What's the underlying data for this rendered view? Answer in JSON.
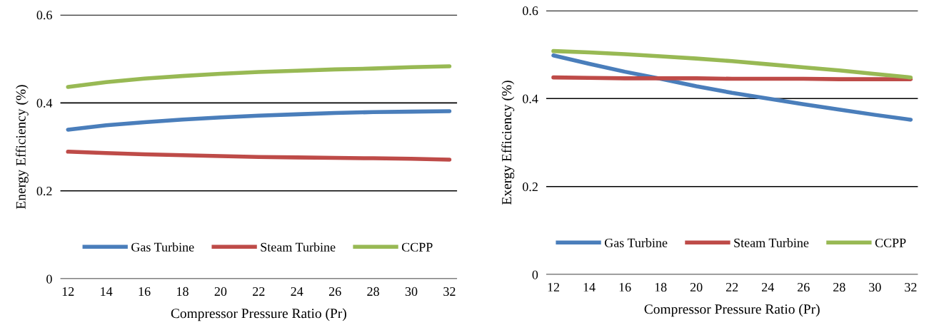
{
  "chart_data": [
    {
      "type": "line",
      "xlabel": "Compressor Pressure Ratio (Pr)",
      "ylabel": "Energy Efficiency (%)",
      "x": [
        12,
        14,
        16,
        18,
        20,
        22,
        24,
        26,
        28,
        30,
        32
      ],
      "xlim": [
        11.6,
        32.4
      ],
      "xticks": [
        12,
        14,
        16,
        18,
        20,
        22,
        24,
        26,
        28,
        30,
        32
      ],
      "ylim": [
        0,
        0.6
      ],
      "yticks": [
        0,
        0.2,
        0.4,
        0.6
      ],
      "grid": "y",
      "legend": "bottom",
      "marker": "none",
      "line_style": "solid",
      "series": [
        {
          "name": "Gas Turbine",
          "color": "#4a7ebb",
          "values": [
            0.339,
            0.349,
            0.356,
            0.362,
            0.367,
            0.371,
            0.374,
            0.377,
            0.379,
            0.38,
            0.381
          ]
        },
        {
          "name": "Steam Turbine",
          "color": "#be4b48",
          "values": [
            0.289,
            0.286,
            0.283,
            0.281,
            0.279,
            0.277,
            0.276,
            0.275,
            0.274,
            0.273,
            0.271
          ]
        },
        {
          "name": "CCPP",
          "color": "#98b954",
          "values": [
            0.436,
            0.447,
            0.455,
            0.461,
            0.466,
            0.47,
            0.473,
            0.476,
            0.478,
            0.481,
            0.483
          ]
        }
      ]
    },
    {
      "type": "line",
      "xlabel": "Compressor Pressure Ratio (Pr)",
      "ylabel": "Exergy Efficiency (%)",
      "x": [
        12,
        14,
        16,
        18,
        20,
        22,
        24,
        26,
        28,
        30,
        32
      ],
      "xlim": [
        11.6,
        32.4
      ],
      "xticks": [
        12,
        14,
        16,
        18,
        20,
        22,
        24,
        26,
        28,
        30,
        32
      ],
      "ylim": [
        0,
        0.6
      ],
      "yticks": [
        0,
        0.2,
        0.4,
        0.6
      ],
      "grid": "y",
      "legend": "bottom",
      "marker": "none",
      "line_style": "solid",
      "series": [
        {
          "name": "Gas Turbine",
          "color": "#4a7ebb",
          "values": [
            0.498,
            0.479,
            0.461,
            0.445,
            0.428,
            0.413,
            0.4,
            0.387,
            0.375,
            0.363,
            0.352
          ]
        },
        {
          "name": "Steam Turbine",
          "color": "#be4b48",
          "values": [
            0.448,
            0.447,
            0.446,
            0.446,
            0.446,
            0.445,
            0.445,
            0.445,
            0.444,
            0.444,
            0.444
          ]
        },
        {
          "name": "CCPP",
          "color": "#98b954",
          "values": [
            0.508,
            0.505,
            0.501,
            0.496,
            0.491,
            0.485,
            0.478,
            0.471,
            0.464,
            0.456,
            0.448
          ]
        }
      ]
    }
  ]
}
